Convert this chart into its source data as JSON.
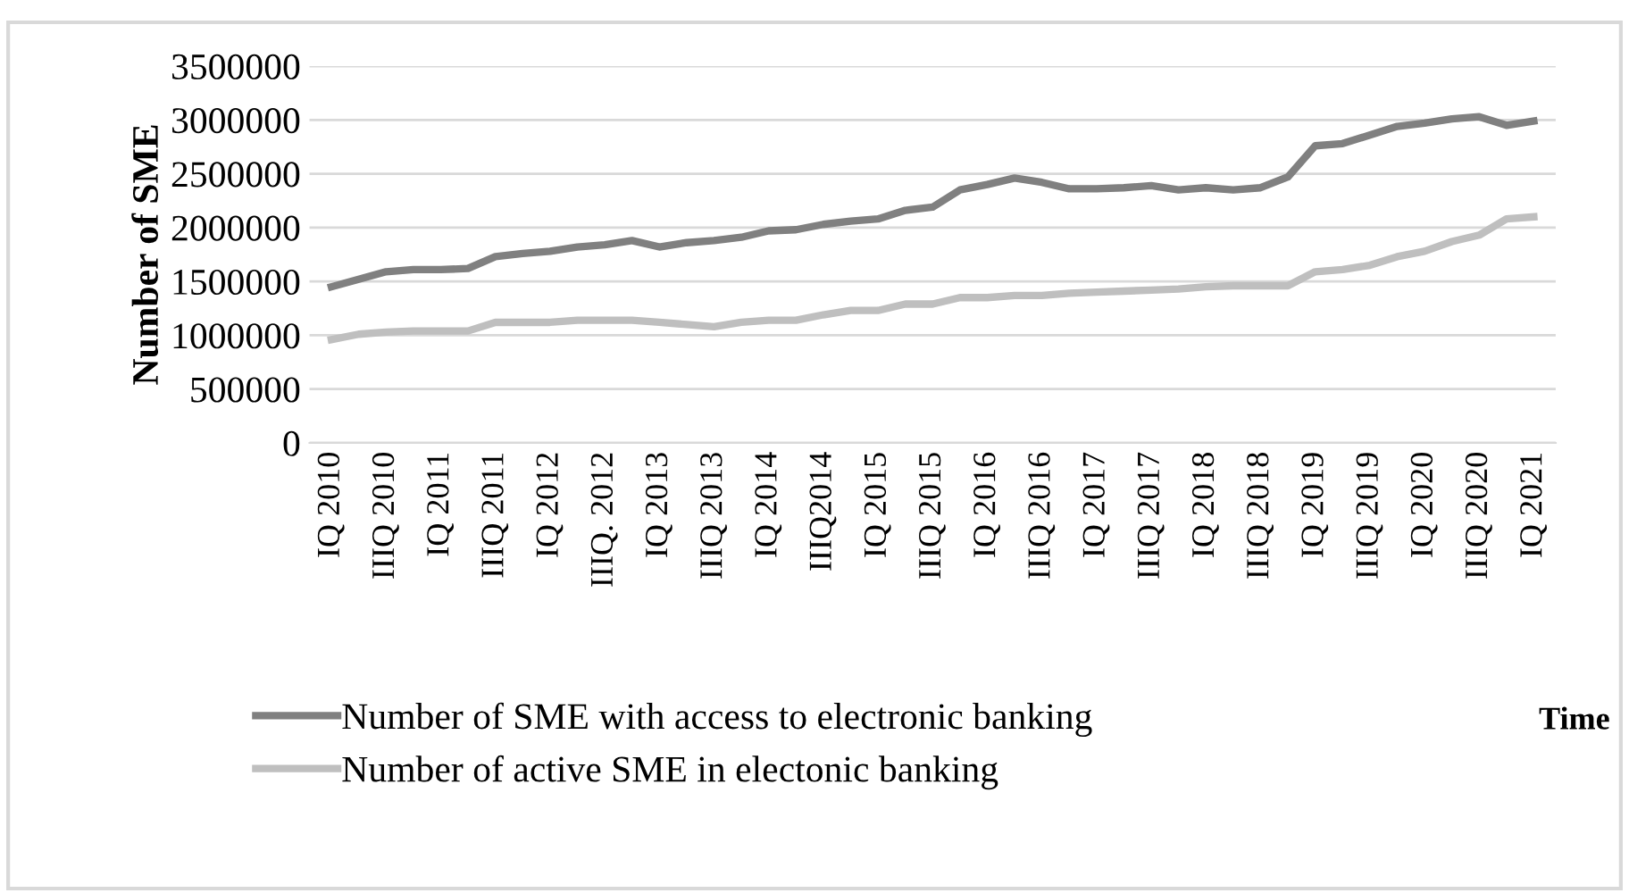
{
  "chart_data": {
    "type": "line",
    "ylabel": "Number of SME",
    "xlabel": "Time",
    "categories": [
      "IQ 2010",
      null,
      "IIIQ 2010",
      null,
      "IQ 2011",
      null,
      "IIIQ 2011",
      null,
      "IQ 2012",
      null,
      "IIIQ. 2012",
      null,
      "IQ 2013",
      null,
      "IIIQ 2013",
      null,
      "IQ 2014",
      null,
      "IIIQ2014",
      null,
      "IQ 2015",
      null,
      "IIIQ 2015",
      null,
      "IQ 2016",
      null,
      "IIIQ 2016",
      null,
      "IQ 2017",
      null,
      "IIIQ 2017",
      null,
      "IQ 2018",
      null,
      "IIIQ 2018",
      null,
      "IQ 2019",
      null,
      "IIIQ 2019",
      null,
      "IQ 2020",
      null,
      "IIIQ 2020",
      null,
      "IQ 2021"
    ],
    "series": [
      {
        "name": "Number of SME with access to electronic banking",
        "color": "#808080",
        "values": [
          1450000,
          1520000,
          1590000,
          1610000,
          1610000,
          1620000,
          1730000,
          1760000,
          1780000,
          1820000,
          1840000,
          1880000,
          1820000,
          1860000,
          1880000,
          1910000,
          1970000,
          1980000,
          2030000,
          2060000,
          2080000,
          2160000,
          2190000,
          2350000,
          2400000,
          2460000,
          2420000,
          2360000,
          2360000,
          2370000,
          2390000,
          2350000,
          2370000,
          2350000,
          2370000,
          2470000,
          2760000,
          2780000,
          2860000,
          2940000,
          2970000,
          3010000,
          3030000,
          2950000,
          2990000
        ]
      },
      {
        "name": "Number of active SME in electonic banking",
        "color": "#bfbfbf",
        "values": [
          960000,
          1010000,
          1030000,
          1040000,
          1040000,
          1040000,
          1120000,
          1120000,
          1120000,
          1140000,
          1140000,
          1140000,
          1120000,
          1100000,
          1080000,
          1120000,
          1140000,
          1140000,
          1190000,
          1230000,
          1230000,
          1290000,
          1290000,
          1350000,
          1350000,
          1370000,
          1370000,
          1390000,
          1400000,
          1410000,
          1420000,
          1430000,
          1450000,
          1460000,
          1460000,
          1460000,
          1590000,
          1610000,
          1650000,
          1730000,
          1780000,
          1870000,
          1930000,
          2080000,
          2100000
        ]
      }
    ],
    "ylim": [
      0,
      3500000
    ],
    "yticks": [
      0,
      500000,
      1000000,
      1500000,
      2000000,
      2500000,
      3000000,
      3500000
    ],
    "grid": "y",
    "legend": "bottom left",
    "marker": "none",
    "line_style": "solid"
  }
}
